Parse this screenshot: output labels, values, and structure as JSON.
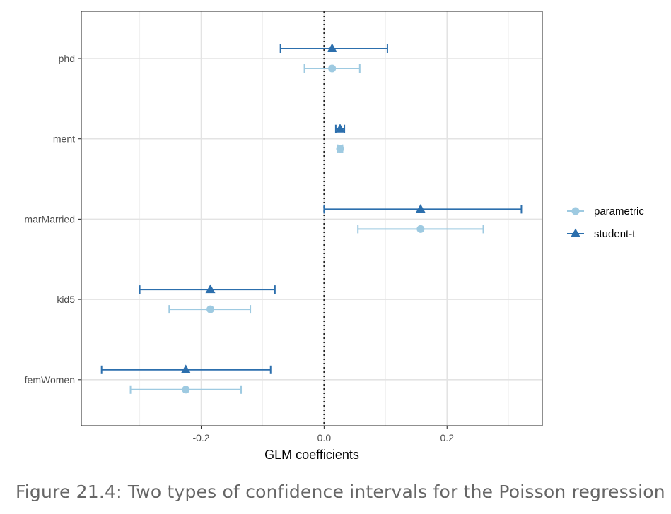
{
  "chart_data": {
    "type": "errorbar",
    "xlabel": "GLM coefficients",
    "ylabel": "",
    "xlim": [
      -0.395,
      0.355
    ],
    "x_ticks": [
      -0.2,
      0.0,
      0.2
    ],
    "x_tick_labels": [
      "-0.2",
      "0.0",
      "0.2"
    ],
    "categories": [
      "phd",
      "ment",
      "marMarried",
      "kid5",
      "femWomen"
    ],
    "reference_line": 0.0,
    "grid": true,
    "legend_position": "right",
    "series": [
      {
        "name": "parametric",
        "marker": "circle",
        "color": "#9ecae1",
        "points": [
          {
            "category": "phd",
            "estimate": 0.013,
            "lower": -0.032,
            "upper": 0.058
          },
          {
            "category": "ment",
            "estimate": 0.026,
            "lower": 0.022,
            "upper": 0.03
          },
          {
            "category": "marMarried",
            "estimate": 0.157,
            "lower": 0.055,
            "upper": 0.259
          },
          {
            "category": "kid5",
            "estimate": -0.185,
            "lower": -0.252,
            "upper": -0.12
          },
          {
            "category": "femWomen",
            "estimate": -0.225,
            "lower": -0.315,
            "upper": -0.135
          }
        ]
      },
      {
        "name": "student-t",
        "marker": "triangle",
        "color": "#2c6fad",
        "points": [
          {
            "category": "phd",
            "estimate": 0.013,
            "lower": -0.071,
            "upper": 0.103
          },
          {
            "category": "ment",
            "estimate": 0.026,
            "lower": 0.019,
            "upper": 0.033
          },
          {
            "category": "marMarried",
            "estimate": 0.157,
            "lower": 0.0,
            "upper": 0.321
          },
          {
            "category": "kid5",
            "estimate": -0.185,
            "lower": -0.3,
            "upper": -0.08
          },
          {
            "category": "femWomen",
            "estimate": -0.225,
            "lower": -0.362,
            "upper": -0.087
          }
        ]
      }
    ]
  },
  "caption": "Figure 21.4: Two types of confidence intervals for the Poisson regression"
}
